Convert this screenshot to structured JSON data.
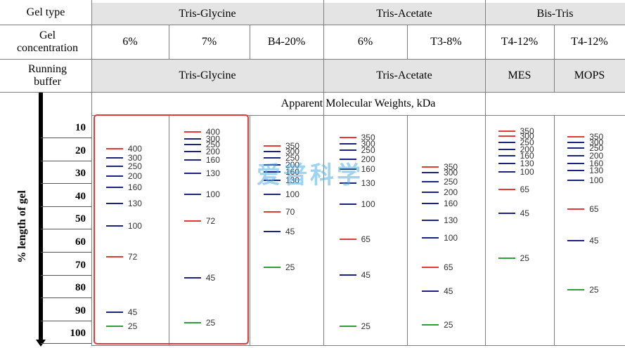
{
  "header": {
    "gel_type_label": "Gel type",
    "gel_concentration_label": "Gel concentration",
    "running_buffer_label": "Running buffer",
    "groups": [
      "Tris-Glycine",
      "Tris-Acetate",
      "Bis-Tris"
    ],
    "concentrations": [
      "6%",
      "7%",
      "B4-20%",
      "6%",
      "T3-8%",
      "T4-12%",
      "T4-12%"
    ],
    "buffers": [
      "Tris-Glycine",
      "Tris-Acetate",
      "MES",
      "MOPS"
    ],
    "apparent_mw_label": "Apparent Molecular Weights, kDa"
  },
  "axis": {
    "label": "% length of gel",
    "ticks": [
      "10",
      "20",
      "30",
      "40",
      "50",
      "60",
      "70",
      "80",
      "90",
      "100"
    ]
  },
  "colors": {
    "red": "#e53935",
    "blue": "#1a237e",
    "green": "#2e9e3a",
    "grid": "#7f7f7f",
    "shade": "#e4e4e4"
  },
  "watermark": "爱普科学",
  "lanes": [
    {
      "bands": [
        {
          "mw": "400",
          "pos": 14.3,
          "c": "red"
        },
        {
          "mw": "300",
          "pos": 18.5,
          "c": "blue"
        },
        {
          "mw": "250",
          "pos": 22.0,
          "c": "blue"
        },
        {
          "mw": "200",
          "pos": 26.5,
          "c": "blue"
        },
        {
          "mw": "160",
          "pos": 31.5,
          "c": "blue"
        },
        {
          "mw": "130",
          "pos": 38.5,
          "c": "blue"
        },
        {
          "mw": "100",
          "pos": 48.5,
          "c": "blue"
        },
        {
          "mw": "72",
          "pos": 62.2,
          "c": "red"
        },
        {
          "mw": "45",
          "pos": 87.0,
          "c": "blue"
        },
        {
          "mw": "25",
          "pos": 93.0,
          "c": "green"
        }
      ]
    },
    {
      "bands": [
        {
          "mw": "400",
          "pos": 7.0,
          "c": "red"
        },
        {
          "mw": "300",
          "pos": 10.0,
          "c": "blue"
        },
        {
          "mw": "250",
          "pos": 12.5,
          "c": "blue"
        },
        {
          "mw": "200",
          "pos": 15.5,
          "c": "blue"
        },
        {
          "mw": "160",
          "pos": 19.3,
          "c": "blue"
        },
        {
          "mw": "130",
          "pos": 25.3,
          "c": "blue"
        },
        {
          "mw": "100",
          "pos": 34.5,
          "c": "blue"
        },
        {
          "mw": "72",
          "pos": 46.5,
          "c": "red"
        },
        {
          "mw": "45",
          "pos": 71.5,
          "c": "blue"
        },
        {
          "mw": "25",
          "pos": 91.5,
          "c": "green"
        }
      ]
    },
    {
      "bands": [
        {
          "mw": "350",
          "pos": 13.0,
          "c": "red"
        },
        {
          "mw": "300",
          "pos": 15.5,
          "c": "blue"
        },
        {
          "mw": "250",
          "pos": 18.5,
          "c": "blue"
        },
        {
          "mw": "200",
          "pos": 21.5,
          "c": "blue"
        },
        {
          "mw": "160",
          "pos": 24.5,
          "c": "blue"
        },
        {
          "mw": "130",
          "pos": 28.5,
          "c": "blue"
        },
        {
          "mw": "100",
          "pos": 34.5,
          "c": "blue"
        },
        {
          "mw": "70",
          "pos": 42.5,
          "c": "red"
        },
        {
          "mw": "45",
          "pos": 51.0,
          "c": "blue"
        },
        {
          "mw": "25",
          "pos": 67.0,
          "c": "green"
        }
      ]
    },
    {
      "bands": [
        {
          "mw": "350",
          "pos": 9.5,
          "c": "red"
        },
        {
          "mw": "300",
          "pos": 12.0,
          "c": "blue"
        },
        {
          "mw": "250",
          "pos": 15.0,
          "c": "blue"
        },
        {
          "mw": "200",
          "pos": 19.0,
          "c": "blue"
        },
        {
          "mw": "160",
          "pos": 23.5,
          "c": "blue"
        },
        {
          "mw": "130",
          "pos": 29.5,
          "c": "blue"
        },
        {
          "mw": "100",
          "pos": 39.0,
          "c": "blue"
        },
        {
          "mw": "65",
          "pos": 54.5,
          "c": "red"
        },
        {
          "mw": "45",
          "pos": 70.5,
          "c": "blue"
        },
        {
          "mw": "25",
          "pos": 93.0,
          "c": "green"
        }
      ]
    },
    {
      "bands": [
        {
          "mw": "350",
          "pos": 22.5,
          "c": "red"
        },
        {
          "mw": "300",
          "pos": 25.0,
          "c": "blue"
        },
        {
          "mw": "250",
          "pos": 29.0,
          "c": "blue"
        },
        {
          "mw": "200",
          "pos": 33.5,
          "c": "blue"
        },
        {
          "mw": "160",
          "pos": 38.5,
          "c": "blue"
        },
        {
          "mw": "130",
          "pos": 46.0,
          "c": "blue"
        },
        {
          "mw": "100",
          "pos": 54.0,
          "c": "blue"
        },
        {
          "mw": "65",
          "pos": 67.0,
          "c": "red"
        },
        {
          "mw": "45",
          "pos": 77.5,
          "c": "blue"
        },
        {
          "mw": "25",
          "pos": 92.5,
          "c": "green"
        }
      ]
    },
    {
      "bands": [
        {
          "mw": "350",
          "pos": 6.5,
          "c": "red"
        },
        {
          "mw": "300",
          "pos": 8.8,
          "c": "red"
        },
        {
          "mw": "250",
          "pos": 11.5,
          "c": "blue"
        },
        {
          "mw": "200",
          "pos": 14.5,
          "c": "blue"
        },
        {
          "mw": "160",
          "pos": 17.5,
          "c": "blue"
        },
        {
          "mw": "130",
          "pos": 21.0,
          "c": "blue"
        },
        {
          "mw": "100",
          "pos": 24.5,
          "c": "blue"
        },
        {
          "mw": "65",
          "pos": 32.5,
          "c": "red"
        },
        {
          "mw": "45",
          "pos": 43.0,
          "c": "blue"
        },
        {
          "mw": "25",
          "pos": 63.0,
          "c": "green"
        }
      ]
    },
    {
      "bands": [
        {
          "mw": "350",
          "pos": 9.0,
          "c": "red"
        },
        {
          "mw": "300",
          "pos": 11.5,
          "c": "blue"
        },
        {
          "mw": "250",
          "pos": 14.0,
          "c": "blue"
        },
        {
          "mw": "200",
          "pos": 17.5,
          "c": "blue"
        },
        {
          "mw": "160",
          "pos": 21.0,
          "c": "blue"
        },
        {
          "mw": "130",
          "pos": 24.0,
          "c": "blue"
        },
        {
          "mw": "100",
          "pos": 28.5,
          "c": "blue"
        },
        {
          "mw": "65",
          "pos": 41.0,
          "c": "red"
        },
        {
          "mw": "45",
          "pos": 55.0,
          "c": "blue"
        },
        {
          "mw": "25",
          "pos": 77.0,
          "c": "green"
        }
      ]
    }
  ]
}
